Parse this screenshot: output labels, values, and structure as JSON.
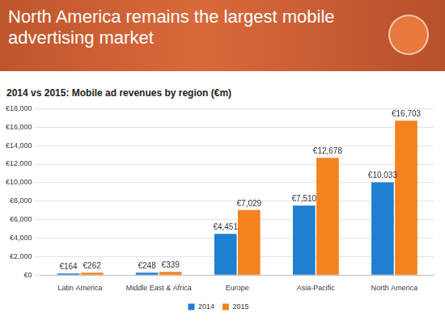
{
  "chart_data": {
    "type": "bar",
    "title": "North America remains the largest mobile advertising market",
    "subtitle": "2014 vs 2015: Mobile ad revenues by region (€m)",
    "categories": [
      "Latin America",
      "Middle East & Africa",
      "Europe",
      "Asia-Pacific",
      "North America"
    ],
    "series": [
      {
        "name": "2014",
        "color": "#1f7fd1",
        "values": [
          164,
          248,
          4451,
          7510,
          10033
        ],
        "value_labels": [
          "€164",
          "€248",
          "€4,451",
          "€7,510",
          "€10,033"
        ]
      },
      {
        "name": "2015",
        "color": "#f5821f",
        "values": [
          262,
          339,
          7029,
          12678,
          16703
        ],
        "value_labels": [
          "€262",
          "€339",
          "€7,029",
          "€12,678",
          "€16,703"
        ]
      }
    ],
    "ylim": [
      0,
      18000
    ],
    "yticks": [
      {
        "value": 0,
        "label": "€0"
      },
      {
        "value": 2000,
        "label": "€2,000"
      },
      {
        "value": 4000,
        "label": "€4,000"
      },
      {
        "value": 6000,
        "label": "€6,000"
      },
      {
        "value": 8000,
        "label": "€8,000"
      },
      {
        "value": 10000,
        "label": "€10,000"
      },
      {
        "value": 12000,
        "label": "€12,000"
      },
      {
        "value": 14000,
        "label": "€14,000"
      },
      {
        "value": 16000,
        "label": "€16,000"
      },
      {
        "value": 18000,
        "label": "€18,000"
      }
    ],
    "grid": true,
    "legend": "bottom",
    "data_labels": true
  }
}
